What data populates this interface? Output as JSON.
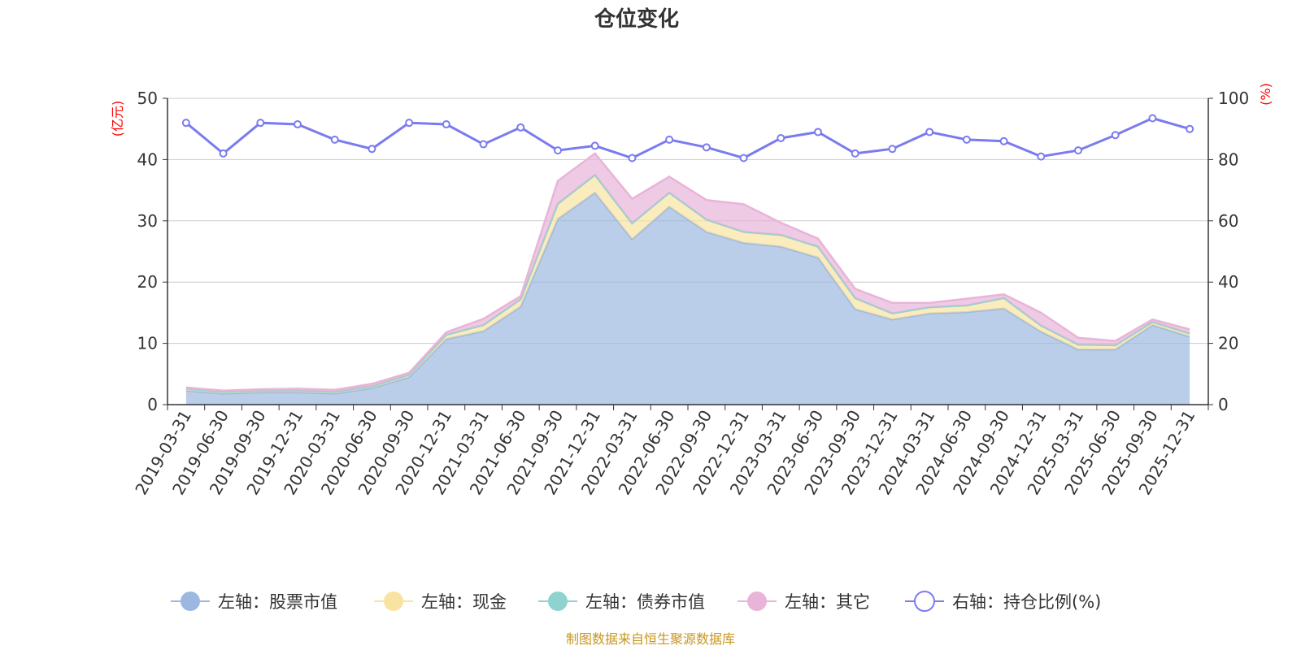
{
  "title": "仓位变化",
  "source_note": "制图数据来自恒生聚源数据库",
  "units": {
    "left": "(亿元)",
    "right": "(%)"
  },
  "colors": {
    "stock": "#9db8e0",
    "cash": "#f8e4a0",
    "bond": "#8fd3d0",
    "other": "#e8b4d8",
    "ratio": "#7b7bf0",
    "grid": "#cccccc",
    "axis": "#333333"
  },
  "legend": [
    {
      "key": "stock",
      "label": "左轴：股票市值"
    },
    {
      "key": "cash",
      "label": "左轴：现金"
    },
    {
      "key": "bond",
      "label": "左轴：债券市值"
    },
    {
      "key": "other",
      "label": "左轴：其它"
    },
    {
      "key": "ratio",
      "label": "右轴：持仓比例(%)"
    }
  ],
  "chart_data": {
    "type": "area",
    "title": "仓位变化",
    "categories": [
      "2019-03-31",
      "2019-06-30",
      "2019-09-30",
      "2019-12-31",
      "2020-03-31",
      "2020-06-30",
      "2020-09-30",
      "2020-12-31",
      "2021-03-31",
      "2021-06-30",
      "2021-09-30",
      "2021-12-31",
      "2022-03-31",
      "2022-06-30",
      "2022-09-30",
      "2022-12-31",
      "2023-03-31",
      "2023-06-30",
      "2023-09-30",
      "2023-12-31",
      "2024-03-31",
      "2024-06-30",
      "2024-09-30",
      "2024-12-31",
      "2025-03-31",
      "2025-06-30",
      "2025-09-30",
      "2025-12-31"
    ],
    "left_axis": {
      "label": "(亿元)",
      "min": 0,
      "max": 50,
      "ticks": [
        0,
        10,
        20,
        30,
        40,
        50
      ]
    },
    "right_axis": {
      "label": "(%)",
      "min": 0,
      "max": 100,
      "ticks": [
        0,
        20,
        40,
        60,
        80,
        100
      ]
    },
    "series": [
      {
        "name": "左轴：股票市值",
        "key": "stock",
        "axis": "left",
        "stacked": true,
        "values": [
          2.3,
          1.8,
          2.0,
          2.0,
          1.8,
          2.7,
          4.5,
          10.7,
          12.0,
          16.0,
          30.3,
          34.6,
          27.0,
          32.3,
          28.2,
          26.4,
          25.8,
          24.0,
          15.6,
          13.9,
          14.9,
          15.1,
          15.7,
          11.9,
          9.0,
          9.0,
          13.0,
          11.1
        ]
      },
      {
        "name": "左轴：现金",
        "key": "cash",
        "axis": "left",
        "stacked": true,
        "values": [
          0.3,
          0.3,
          0.3,
          0.3,
          0.3,
          0.3,
          0.4,
          0.7,
          1.0,
          1.2,
          2.5,
          2.9,
          2.6,
          2.3,
          2.0,
          1.8,
          1.9,
          1.8,
          1.8,
          1.0,
          1.0,
          1.1,
          1.7,
          1.0,
          0.8,
          0.7,
          0.5,
          0.5
        ]
      },
      {
        "name": "左轴：债券市值",
        "key": "bond",
        "axis": "left",
        "stacked": true,
        "values": [
          0,
          0,
          0,
          0,
          0,
          0,
          0,
          0,
          0,
          0,
          0,
          0,
          0,
          0,
          0,
          0,
          0,
          0,
          0,
          0,
          0,
          0,
          0,
          0,
          0,
          0,
          0,
          0
        ]
      },
      {
        "name": "左轴：其它",
        "key": "other",
        "axis": "left",
        "stacked": true,
        "values": [
          0.2,
          0.2,
          0.2,
          0.3,
          0.3,
          0.4,
          0.3,
          0.4,
          1.0,
          0.5,
          3.7,
          3.5,
          4.0,
          2.6,
          3.2,
          4.5,
          2.0,
          1.3,
          1.5,
          1.7,
          0.7,
          1.1,
          0.6,
          2.1,
          1.1,
          0.7,
          0.4,
          0.7
        ]
      },
      {
        "name": "右轴：持仓比例(%)",
        "key": "ratio",
        "axis": "right",
        "type": "line",
        "values": [
          92,
          82,
          92,
          91.5,
          86.5,
          83.5,
          92,
          91.5,
          85,
          90.5,
          83,
          84.5,
          80.5,
          86.5,
          84,
          80.5,
          87,
          89,
          82,
          83.5,
          89,
          86.5,
          86,
          81,
          83,
          88,
          93.5,
          90
        ]
      }
    ]
  }
}
